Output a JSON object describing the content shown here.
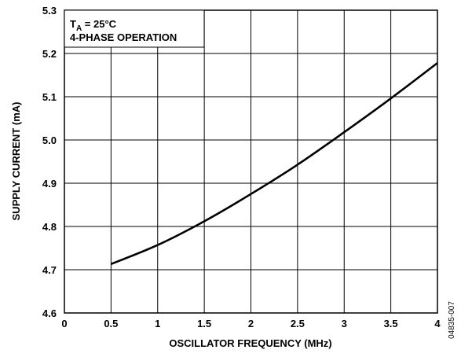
{
  "chart_data": {
    "type": "line",
    "xlabel": "OSCILLATOR FREQUENCY (MHz)",
    "ylabel": "SUPPLY CURRENT (mA)",
    "xlim": [
      0,
      4
    ],
    "ylim": [
      4.6,
      5.3
    ],
    "x_ticks": [
      "0",
      "0.5",
      "1",
      "1.5",
      "2",
      "2.5",
      "3",
      "3.5",
      "4"
    ],
    "y_ticks": [
      "4.6",
      "4.7",
      "4.8",
      "4.9",
      "5.0",
      "5.1",
      "5.2",
      "5.3"
    ],
    "grid": true,
    "annotation": {
      "line1_prefix": "T",
      "line1_sub": "A",
      "line1_suffix": " = 25°C",
      "line2": "4-PHASE OPERATION"
    },
    "series": [
      {
        "x": [
          0.5,
          1.0,
          1.5,
          2.0,
          2.5,
          3.0,
          3.5,
          4.0
        ],
        "y": [
          4.713,
          4.757,
          4.812,
          4.875,
          4.943,
          5.018,
          5.096,
          5.178
        ]
      }
    ],
    "figure_id": "04835-007"
  }
}
